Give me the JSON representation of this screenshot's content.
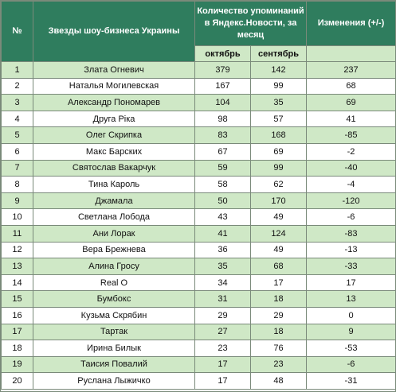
{
  "header": {
    "num": "№",
    "name": "Звезды шоу-бизнеса Украины",
    "mentions": "Количество упоминаний в Яндекс.Новости, за месяц",
    "change": "Изменения (+/-)",
    "oct": "октябрь",
    "sep": "сентябрь"
  },
  "rows": [
    {
      "num": "1",
      "name": "Злата Огневич",
      "oct": "379",
      "sep": "142",
      "change": "237"
    },
    {
      "num": "2",
      "name": "Наталья Могилевская",
      "oct": "167",
      "sep": "99",
      "change": "68"
    },
    {
      "num": "3",
      "name": "Александр Пономарев",
      "oct": "104",
      "sep": "35",
      "change": "69"
    },
    {
      "num": "4",
      "name": "Друга Ріка",
      "oct": "98",
      "sep": "57",
      "change": "41"
    },
    {
      "num": "5",
      "name": "Олег Скрипка",
      "oct": "83",
      "sep": "168",
      "change": "-85"
    },
    {
      "num": "6",
      "name": "Макс Барских",
      "oct": "67",
      "sep": "69",
      "change": "-2"
    },
    {
      "num": "7",
      "name": "Святослав Вакарчук",
      "oct": "59",
      "sep": "99",
      "change": "-40"
    },
    {
      "num": "8",
      "name": "Тина Кароль",
      "oct": "58",
      "sep": "62",
      "change": "-4"
    },
    {
      "num": "9",
      "name": "Джамала",
      "oct": "50",
      "sep": "170",
      "change": "-120"
    },
    {
      "num": "10",
      "name": "Светлана Лобода",
      "oct": "43",
      "sep": "49",
      "change": "-6"
    },
    {
      "num": "11",
      "name": "Ани Лорак",
      "oct": "41",
      "sep": "124",
      "change": "-83"
    },
    {
      "num": "12",
      "name": "Вера Брежнева",
      "oct": "36",
      "sep": "49",
      "change": "-13"
    },
    {
      "num": "13",
      "name": "Алина Гросу",
      "oct": "35",
      "sep": "68",
      "change": "-33"
    },
    {
      "num": "14",
      "name": "Real O",
      "oct": "34",
      "sep": "17",
      "change": "17"
    },
    {
      "num": "15",
      "name": "Бумбокс",
      "oct": "31",
      "sep": "18",
      "change": "13"
    },
    {
      "num": "16",
      "name": "Кузьма Скрябин",
      "oct": "29",
      "sep": "29",
      "change": "0"
    },
    {
      "num": "17",
      "name": "Тартак",
      "oct": "27",
      "sep": "18",
      "change": "9"
    },
    {
      "num": "18",
      "name": "Ирина Билык",
      "oct": "23",
      "sep": "76",
      "change": "-53"
    },
    {
      "num": "19",
      "name": "Таисия Повалий",
      "oct": "17",
      "sep": "23",
      "change": "-6"
    },
    {
      "num": "20",
      "name": "Руслана Лыжичко",
      "oct": "17",
      "sep": "48",
      "change": "-31"
    }
  ],
  "colors": {
    "header_bg": "#2f7d5e",
    "row_green": "#cfe8c6",
    "row_white": "#ffffff"
  }
}
